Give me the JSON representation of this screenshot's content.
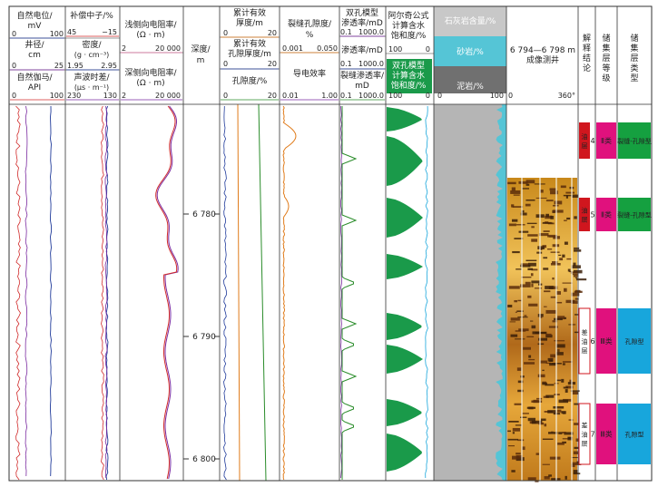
{
  "header": {
    "track1": {
      "curve1": {
        "label": "自然电位/",
        "unit": "mV",
        "min": "0",
        "max": "100"
      },
      "curve2": {
        "label": "井径/",
        "unit": "cm",
        "min": "0",
        "max": "25"
      },
      "curve3": {
        "label": "自然伽马/",
        "unit": "API",
        "min": "0",
        "max": "100"
      }
    },
    "track2": {
      "curve1": {
        "label": "补偿中子/%",
        "min": "45",
        "max": "−15"
      },
      "curve2": {
        "label": "密度/",
        "unit": "(g · cm⁻³)",
        "min": "1.95",
        "max": "2.95"
      },
      "curve3": {
        "label": "声波时差/",
        "unit": "(μs · m⁻¹)",
        "min": "230",
        "max": "130"
      }
    },
    "track3": {
      "curve1": {
        "label": "浅侧向电阻率/",
        "unit": "(Ω · m)",
        "min": "2",
        "max": "20 000"
      },
      "curve2": {
        "label": "深侧向电阻率/",
        "unit": "(Ω · m)",
        "min": "2",
        "max": "20 000"
      }
    },
    "depth": {
      "label": "深度/",
      "unit": "m"
    },
    "track5": {
      "curve1": {
        "label": "累计有效",
        "label2": "厚度/m",
        "min": "0",
        "max": "20"
      },
      "curve2": {
        "label": "累计有效",
        "label2": "孔隙厚度/m",
        "min": "0",
        "max": "20"
      },
      "curve3": {
        "label": "孔隙度/%",
        "min": "0",
        "max": "20"
      }
    },
    "track6": {
      "curve1": {
        "label": "裂缝孔隙度/",
        "unit": "%",
        "min": "0.001",
        "max": "0.050"
      },
      "curve2": {
        "label": "导电效率",
        "min": "0.01",
        "max": "1.00"
      }
    },
    "track7": {
      "curve1": {
        "label": "双孔模型",
        "label2": "渗透率/mD",
        "min": "0.1",
        "max": "1000.0"
      },
      "curve2": {
        "label": "渗透率/mD",
        "min": "0.1",
        "max": "1000.0"
      },
      "curve3": {
        "label": "裂缝渗透率/",
        "unit": "mD",
        "min": "0.1",
        "max": "1000.0"
      }
    },
    "track8": {
      "curve1": {
        "label": "阿尔奇公式",
        "label2": "计算含水",
        "label3": "饱和度/%",
        "min": "100",
        "max": "0"
      },
      "curve2": {
        "label": "双孔模型",
        "label2": "计算含水",
        "label3": "饱和度/%",
        "min": "100",
        "max": "0"
      }
    },
    "track9": {
      "item1": "石灰岩含量/%",
      "item2": "砂岩/%",
      "item3": "泥岩/%",
      "min": "0",
      "max": "100"
    },
    "track10": {
      "label": "6 794—6 798 m",
      "label2": "成像测井",
      "min": "0",
      "max": "360°"
    },
    "track11": {
      "label": "解释结论"
    },
    "track12": {
      "label": "储集层等级"
    },
    "track13": {
      "label": "储集层类型"
    }
  },
  "depth_ticks": [
    "6 780",
    "6 790",
    "6 800"
  ],
  "intervals": [
    {
      "conclusion": "油层",
      "number": "4",
      "grade": "Ⅱ类",
      "type": "裂缝-孔隙型"
    },
    {
      "conclusion": "油层",
      "number": "5",
      "grade": "Ⅱ类",
      "type": "裂缝-孔隙型"
    },
    {
      "conclusion": "差油层",
      "number": "6",
      "grade": "Ⅲ类",
      "type": "孔隙型"
    },
    {
      "conclusion": "差油层",
      "number": "7",
      "grade": "Ⅲ类",
      "type": "孔隙型"
    }
  ],
  "colors": {
    "grid": "#333333",
    "green_fill": "#1a9a4a",
    "magenta_fill": "#e0117d",
    "cyan_fill": "#18a6dc",
    "red_fill": "#d0161e",
    "lime_fill": "#15a040",
    "grey_fill": "#b5b5b5",
    "teal_fill": "#55c5d6",
    "dark_fill": "#707070",
    "blue_curve": "#1f3a9a",
    "red_curve": "#d12a2a",
    "green_curve": "#2a8c2a",
    "orange_curve": "#e07b1a",
    "purple_curve": "#7a2aa0",
    "pink_curve": "#e070a0"
  }
}
